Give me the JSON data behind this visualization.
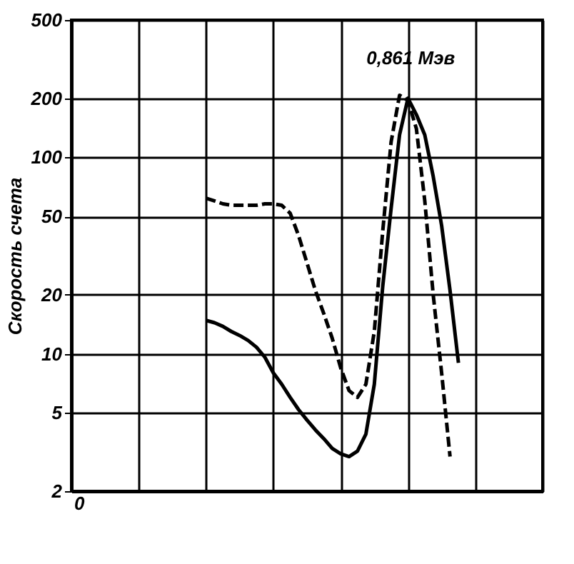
{
  "chart_data": {
    "type": "line",
    "ylabel": "Скорость счета",
    "log": "y",
    "grid": true,
    "categories": [
      null,
      null,
      null,
      null,
      null,
      null,
      null,
      null,
      null,
      null,
      null,
      null,
      null,
      null,
      null,
      null,
      null,
      null,
      null,
      null,
      null,
      null,
      null,
      null,
      null,
      null,
      null,
      null,
      null,
      null,
      null,
      null,
      null,
      null,
      null,
      null,
      null,
      null,
      null,
      null,
      null,
      null,
      null,
      null,
      null,
      null,
      null,
      null,
      null,
      null,
      null,
      null,
      null,
      null,
      null,
      null,
      null
    ],
    "ylim": [
      2,
      500
    ],
    "yticks": [
      2,
      5,
      10,
      20,
      50,
      100,
      200,
      500
    ],
    "annotations": [
      "0,861 Мэв",
      "0"
    ],
    "series": [
      {
        "color": "#000000",
        "line_style": "solid",
        "values": [
          null,
          null,
          null,
          null,
          null,
          null,
          null,
          null,
          null,
          null,
          null,
          null,
          null,
          null,
          null,
          null,
          14.8,
          14.4,
          13.8,
          13.0,
          12.4,
          11.7,
          10.8,
          9.6,
          8.0,
          7.0,
          6.0,
          5.2,
          4.6,
          4.1,
          3.7,
          3.3,
          3.1,
          3.0,
          3.2,
          3.9,
          7.0,
          22,
          55,
          130,
          200,
          165,
          130,
          80,
          45,
          21,
          9.0,
          null,
          null,
          null,
          null,
          null,
          null,
          null,
          null,
          null,
          null
        ]
      },
      {
        "color": "#000000",
        "line_style": "dashed",
        "values": [
          null,
          null,
          null,
          null,
          null,
          null,
          null,
          null,
          null,
          null,
          null,
          null,
          null,
          null,
          null,
          null,
          62,
          60,
          58,
          57,
          57,
          57,
          57,
          58,
          58,
          57,
          52,
          40,
          29,
          21,
          16,
          12,
          8.5,
          6.5,
          6.0,
          7.0,
          13,
          42,
          120,
          207,
          195,
          140,
          60,
          20,
          8,
          3.0,
          null,
          null,
          null,
          null,
          null,
          null,
          null,
          null,
          null,
          null,
          null
        ]
      }
    ]
  }
}
